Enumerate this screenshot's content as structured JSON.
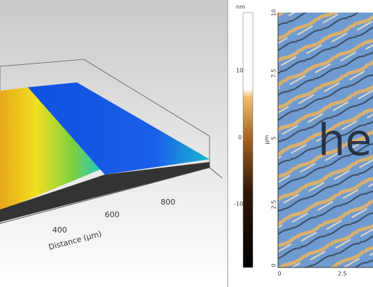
{
  "surface_plot": {
    "axis_label": "Distance (µm)",
    "ticks": [
      "400",
      "600",
      "800"
    ]
  },
  "colorbar": {
    "unit": "nm",
    "ticks": [
      "10",
      "0",
      "-10"
    ]
  },
  "afm_image": {
    "y_axis_label": "µm",
    "y_ticks": [
      "10",
      "7.5",
      "5",
      "2.5",
      "0"
    ],
    "x_ticks": [
      "0",
      "2.5"
    ],
    "inscription": "he"
  }
}
